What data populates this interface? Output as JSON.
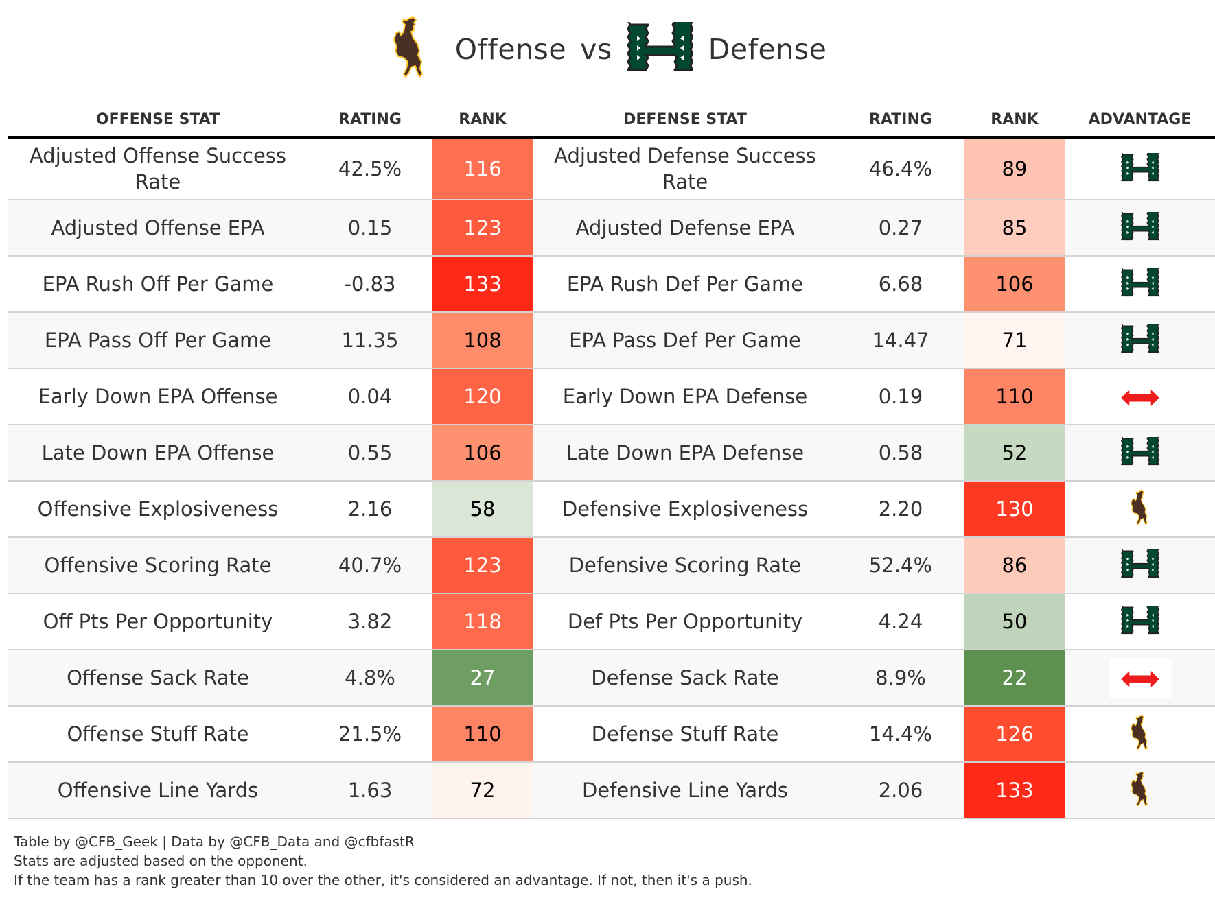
{
  "title": {
    "offense_team_icon": "wyoming-cowboys-logo",
    "offense_word": "Offense",
    "vs_word": "vs",
    "defense_team_icon": "hawaii-h-logo",
    "defense_word": "Defense"
  },
  "headers": [
    "OFFENSE STAT",
    "RATING",
    "RANK",
    "DEFENSE STAT",
    "RATING",
    "RANK",
    "ADVANTAGE"
  ],
  "rows": [
    {
      "off_stat": "Adjusted Offense Success Rate",
      "off_rating": "42.5%",
      "off_rank": "116",
      "off_rank_color": "#fe7050",
      "off_rank_text": "#ffffff",
      "def_stat": "Adjusted Defense Success Rate",
      "def_rating": "46.4%",
      "def_rank": "89",
      "def_rank_color": "#fec3b1",
      "def_rank_text": "#000000",
      "advantage": "defense"
    },
    {
      "off_stat": "Adjusted Offense EPA",
      "off_rating": "0.15",
      "off_rank": "123",
      "off_rank_color": "#fe5a3d",
      "off_rank_text": "#ffffff",
      "def_stat": "Adjusted Defense EPA",
      "def_rating": "0.27",
      "def_rank": "85",
      "def_rank_color": "#fecdbd",
      "def_rank_text": "#000000",
      "advantage": "defense"
    },
    {
      "off_stat": "EPA Rush Off Per Game",
      "off_rating": "-0.83",
      "off_rank": "133",
      "off_rank_color": "#fe2a17",
      "off_rank_text": "#ffffff",
      "def_stat": "EPA Rush Def Per Game",
      "def_rating": "6.68",
      "def_rank": "106",
      "def_rank_color": "#fe9270",
      "def_rank_text": "#000000",
      "advantage": "defense"
    },
    {
      "off_stat": "EPA Pass Off Per Game",
      "off_rating": "11.35",
      "off_rank": "108",
      "off_rank_color": "#fe8b6a",
      "off_rank_text": "#000000",
      "def_stat": "EPA Pass Def Per Game",
      "def_rating": "14.47",
      "def_rank": "71",
      "def_rank_color": "#fff5f1",
      "def_rank_text": "#000000",
      "advantage": "defense"
    },
    {
      "off_stat": "Early Down EPA Offense",
      "off_rating": "0.04",
      "off_rank": "120",
      "off_rank_color": "#fe6445",
      "off_rank_text": "#ffffff",
      "def_stat": "Early Down EPA Defense",
      "def_rating": "0.19",
      "def_rank": "110",
      "def_rank_color": "#fe8466",
      "def_rank_text": "#000000",
      "advantage": "push"
    },
    {
      "off_stat": "Late Down EPA Offense",
      "off_rating": "0.55",
      "off_rank": "106",
      "off_rank_color": "#fe9270",
      "off_rank_text": "#000000",
      "def_stat": "Late Down EPA Defense",
      "def_rating": "0.58",
      "def_rank": "52",
      "def_rank_color": "#c6d9c1",
      "def_rank_text": "#000000",
      "advantage": "defense"
    },
    {
      "off_stat": "Offensive Explosiveness",
      "off_rating": "2.16",
      "off_rank": "58",
      "off_rank_color": "#dae6d6",
      "off_rank_text": "#000000",
      "def_stat": "Defensive Explosiveness",
      "def_rating": "2.20",
      "def_rank": "130",
      "def_rank_color": "#fe3a22",
      "def_rank_text": "#ffffff",
      "advantage": "offense"
    },
    {
      "off_stat": "Offensive Scoring Rate",
      "off_rating": "40.7%",
      "off_rank": "123",
      "off_rank_color": "#fe5a3d",
      "off_rank_text": "#ffffff",
      "def_stat": "Defensive Scoring Rate",
      "def_rating": "52.4%",
      "def_rank": "86",
      "def_rank_color": "#fecab9",
      "def_rank_text": "#000000",
      "advantage": "defense"
    },
    {
      "off_stat": "Off Pts Per Opportunity",
      "off_rating": "3.82",
      "off_rank": "118",
      "off_rank_color": "#fe6a4b",
      "off_rank_text": "#ffffff",
      "def_stat": "Def Pts Per Opportunity",
      "def_rating": "4.24",
      "def_rank": "50",
      "def_rank_color": "#c0d4bb",
      "def_rank_text": "#000000",
      "advantage": "defense"
    },
    {
      "off_stat": "Offense Sack Rate",
      "off_rating": "4.8%",
      "off_rank": "27",
      "off_rank_color": "#6f9e63",
      "off_rank_text": "#ffffff",
      "def_stat": "Defense Sack Rate",
      "def_rating": "8.9%",
      "def_rank": "22",
      "def_rank_color": "#5e9150",
      "def_rank_text": "#ffffff",
      "advantage": "push"
    },
    {
      "off_stat": "Offense Stuff Rate",
      "off_rating": "21.5%",
      "off_rank": "110",
      "off_rank_color": "#fe8466",
      "off_rank_text": "#000000",
      "def_stat": "Defense Stuff Rate",
      "def_rating": "14.4%",
      "def_rank": "126",
      "def_rank_color": "#fe4c2e",
      "def_rank_text": "#ffffff",
      "advantage": "offense"
    },
    {
      "off_stat": "Offensive Line Yards",
      "off_rating": "1.63",
      "off_rank": "72",
      "off_rank_color": "#fff3ee",
      "off_rank_text": "#000000",
      "def_stat": "Defensive Line Yards",
      "def_rating": "2.06",
      "def_rank": "133",
      "def_rank_color": "#fe2a17",
      "def_rank_text": "#ffffff",
      "advantage": "offense"
    }
  ],
  "footer": {
    "line1": "Table by @CFB_Geek | Data by @CFB_Data and @cfbfastR",
    "line2": "Stats are adjusted based on the opponent.",
    "line3": "If the team has a rank greater than 10 over the other, it's considered an advantage. If not, then it's a push."
  },
  "colors": {
    "wyoming_brown": "#492f24",
    "wyoming_gold": "#ffc425",
    "hawaii_green": "#024731",
    "push_red": "#ee1c1c"
  }
}
